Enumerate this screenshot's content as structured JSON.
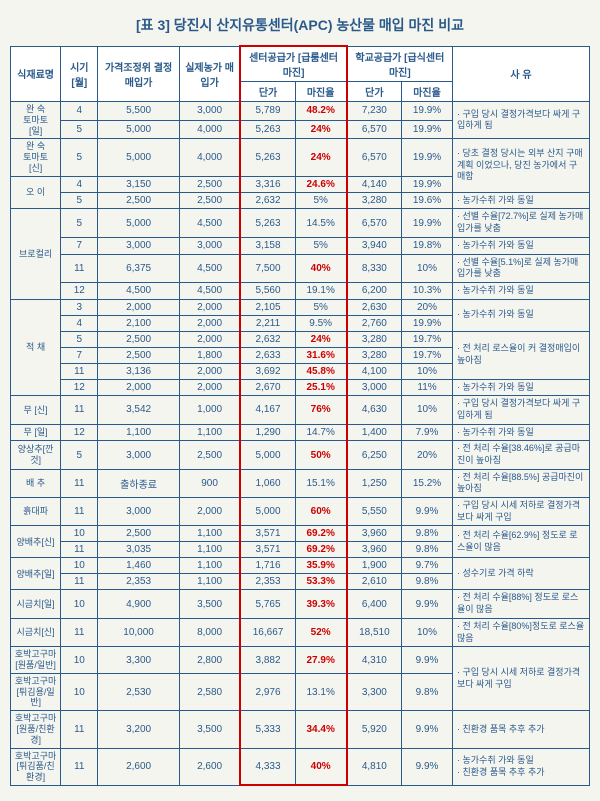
{
  "title": "[표 3] 당진시 산지유통센터(APC) 농산물 매입 마진 비교",
  "header": {
    "h1": "식재료명",
    "h2": "시기 [월]",
    "h3": "가격조정위 결정매입가",
    "h4": "실제농가 매입가",
    "grpA": "센터공급가 [급룸센터 마진]",
    "grpA_a": "단가",
    "grpA_b": "마진율",
    "grpB": "학교공급가 [급식센터 마진]",
    "grpB_a": "단가",
    "grpB_b": "마진율",
    "h7": "사 유"
  },
  "rows": [
    {
      "name": "완 숙\n토마토\n[일]",
      "month": "4",
      "c1": "5,500",
      "c2": "3,000",
      "c3": "5,789",
      "c4": "48.2%",
      "hl": true,
      "c5": "7,230",
      "c6": "19.9%",
      "note": "· 구입 당시 결정가격보다 싸게 구입하게 됨"
    },
    {
      "name": "",
      "month": "5",
      "c1": "5,000",
      "c2": "4,000",
      "c3": "5,263",
      "c4": "24%",
      "hl": true,
      "c5": "6,570",
      "c6": "19.9%",
      "note": ""
    },
    {
      "name": "완 숙\n토마토\n[신]",
      "month": "5",
      "c1": "5,000",
      "c2": "4,000",
      "c3": "5,263",
      "c4": "24%",
      "hl": true,
      "c5": "6,570",
      "c6": "19.9%",
      "note": "· 당초 결정 당시는 외부 산지 구매계획 이었으나, 당진 농가에서 구매함"
    },
    {
      "name": "오 이",
      "month": "4",
      "c1": "3,150",
      "c2": "2,500",
      "c3": "3,316",
      "c4": "24.6%",
      "hl": true,
      "c5": "4,140",
      "c6": "19.9%",
      "note": ""
    },
    {
      "name": "",
      "month": "5",
      "c1": "2,500",
      "c2": "2,500",
      "c3": "2,632",
      "c4": "5%",
      "c5": "3,280",
      "c6": "19.6%",
      "note": "· 농가수취 가와 동일"
    },
    {
      "name": "브로컬리",
      "month": "5",
      "c1": "5,000",
      "c2": "4,500",
      "c3": "5,263",
      "c4": "14.5%",
      "c5": "6,570",
      "c6": "19.9%",
      "note": "· 선별 수율[72.7%]로 실제 농가매입가를 낮춤"
    },
    {
      "name": "",
      "month": "7",
      "c1": "3,000",
      "c2": "3,000",
      "c3": "3,158",
      "c4": "5%",
      "c5": "3,940",
      "c6": "19.8%",
      "note": "· 농가수취 가와 동일"
    },
    {
      "name": "",
      "month": "11",
      "c1": "6,375",
      "c2": "4,500",
      "c3": "7,500",
      "c4": "40%",
      "hl": true,
      "c5": "8,330",
      "c6": "10%",
      "note": "· 선별 수율[5.1%]로 실제 농가매입가를 낮춤"
    },
    {
      "name": "",
      "month": "12",
      "c1": "4,500",
      "c2": "4,500",
      "c3": "5,560",
      "c4": "19.1%",
      "c5": "6,200",
      "c6": "10.3%",
      "note": "· 농가수취 가와 동일"
    },
    {
      "name": "적 채",
      "month": "3",
      "c1": "2,000",
      "c2": "2,000",
      "c3": "2,105",
      "c4": "5%",
      "c5": "2,630",
      "c6": "20%",
      "note": "· 농가수취 가와 동일"
    },
    {
      "name": "",
      "month": "4",
      "c1": "2,100",
      "c2": "2,000",
      "c3": "2,211",
      "c4": "9.5%",
      "c5": "2,760",
      "c6": "19.9%",
      "note": ""
    },
    {
      "name": "",
      "month": "5",
      "c1": "2,500",
      "c2": "2,000",
      "c3": "2,632",
      "c4": "24%",
      "hl": true,
      "c5": "3,280",
      "c6": "19.7%",
      "note": "· 전 처리 로스율이 커 결정매입이 높아짐"
    },
    {
      "name": "",
      "month": "7",
      "c1": "2,500",
      "c2": "1,800",
      "c3": "2,633",
      "c4": "31.6%",
      "hl": true,
      "c5": "3,280",
      "c6": "19.7%",
      "note": ""
    },
    {
      "name": "",
      "month": "11",
      "c1": "3,136",
      "c2": "2,000",
      "c3": "3,692",
      "c4": "45.8%",
      "hl": true,
      "c5": "4,100",
      "c6": "10%",
      "note": ""
    },
    {
      "name": "",
      "month": "12",
      "c1": "2,000",
      "c2": "2,000",
      "c3": "2,670",
      "c4": "25.1%",
      "hl": true,
      "c5": "3,000",
      "c6": "11%",
      "note": "· 농가수취 가와 동일"
    },
    {
      "name": "무 [신]",
      "month": "11",
      "c1": "3,542",
      "c2": "1,000",
      "c3": "4,167",
      "c4": "76%",
      "hl": true,
      "c5": "4,630",
      "c6": "10%",
      "note": "· 구입 당시 결정가격보다 싸게 구입하게 됨"
    },
    {
      "name": "무 [일]",
      "month": "12",
      "c1": "1,100",
      "c2": "1,100",
      "c3": "1,290",
      "c4": "14.7%",
      "c5": "1,400",
      "c6": "7.9%",
      "note": "· 농가수취 가와 동일"
    },
    {
      "name": "양상추[깐것]",
      "month": "5",
      "c1": "3,000",
      "c2": "2,500",
      "c3": "5,000",
      "c4": "50%",
      "hl": true,
      "c5": "6,250",
      "c6": "20%",
      "note": "· 전 처리 수율[38.46%]로 공급마진이 높아짐"
    },
    {
      "name": "배 추",
      "month": "11",
      "c1": "출하종료",
      "c2": "900",
      "c3": "1,060",
      "c4": "15.1%",
      "c5": "1,250",
      "c6": "15.2%",
      "note": "· 전 처리 수율[88.5%] 공급마진이 높아짐"
    },
    {
      "name": "흙대파",
      "month": "11",
      "c1": "3,000",
      "c2": "2,000",
      "c3": "5,000",
      "c4": "60%",
      "hl": true,
      "c5": "5,550",
      "c6": "9.9%",
      "note": "· 구입 당시 시세 저하로 결정가격보다 싸게 구입"
    },
    {
      "name": "양배추[신]",
      "month": "10",
      "c1": "2,500",
      "c2": "1,100",
      "c3": "3,571",
      "c4": "69.2%",
      "hl": true,
      "c5": "3,960",
      "c6": "9.8%",
      "note": "· 전 처리 수율[62.9%] 정도로 로스율이 많음"
    },
    {
      "name": "",
      "month": "11",
      "c1": "3,035",
      "c2": "1,100",
      "c3": "3,571",
      "c4": "69.2%",
      "hl": true,
      "c5": "3,960",
      "c6": "9.8%",
      "note": ""
    },
    {
      "name": "양배추[일]",
      "month": "10",
      "c1": "1,460",
      "c2": "1,100",
      "c3": "1,716",
      "c4": "35.9%",
      "hl": true,
      "c5": "1,900",
      "c6": "9.7%",
      "note": "· 성수기로 가격 하락"
    },
    {
      "name": "",
      "month": "11",
      "c1": "2,353",
      "c2": "1,100",
      "c3": "2,353",
      "c4": "53.3%",
      "hl": true,
      "c5": "2,610",
      "c6": "9.8%",
      "note": ""
    },
    {
      "name": "시금치[일]",
      "month": "10",
      "c1": "4,900",
      "c2": "3,500",
      "c3": "5,765",
      "c4": "39.3%",
      "hl": true,
      "c5": "6,400",
      "c6": "9.9%",
      "note": "· 전 처리 수율[88%] 정도로 로스율이 많음"
    },
    {
      "name": "시금치[신]",
      "month": "11",
      "c1": "10,000",
      "c2": "8,000",
      "c3": "16,667",
      "c4": "52%",
      "hl": true,
      "c5": "18,510",
      "c6": "10%",
      "note": "· 전 처리 수율[80%]정도로 로스율 많음"
    },
    {
      "name": "호박고구마\n[원품/일반]",
      "month": "10",
      "c1": "3,300",
      "c2": "2,800",
      "c3": "3,882",
      "c4": "27.9%",
      "hl": true,
      "c5": "4,310",
      "c6": "9.9%",
      "note": "· 구입 당시 시세 저하로 결정가격보다 싸게 구입"
    },
    {
      "name": "호박고구마\n[튀김용/일반]",
      "month": "10",
      "c1": "2,530",
      "c2": "2,580",
      "c3": "2,976",
      "c4": "13.1%",
      "c5": "3,300",
      "c6": "9.8%",
      "note": ""
    },
    {
      "name": "호박고구마\n[원품/친환경]",
      "month": "11",
      "c1": "3,200",
      "c2": "3,500",
      "c3": "5,333",
      "c4": "34.4%",
      "hl": true,
      "c5": "5,920",
      "c6": "9.9%",
      "note": "· 친환경 품목 추후 추가"
    },
    {
      "name": "호박고구마\n[튀김품/친환경]",
      "month": "11",
      "c1": "2,600",
      "c2": "2,600",
      "c3": "4,333",
      "c4": "40%",
      "hl": true,
      "c5": "4,810",
      "c6": "9.9%",
      "note": "· 농가수취 가와 동일\n· 친환경 품목 추후 추가"
    }
  ]
}
